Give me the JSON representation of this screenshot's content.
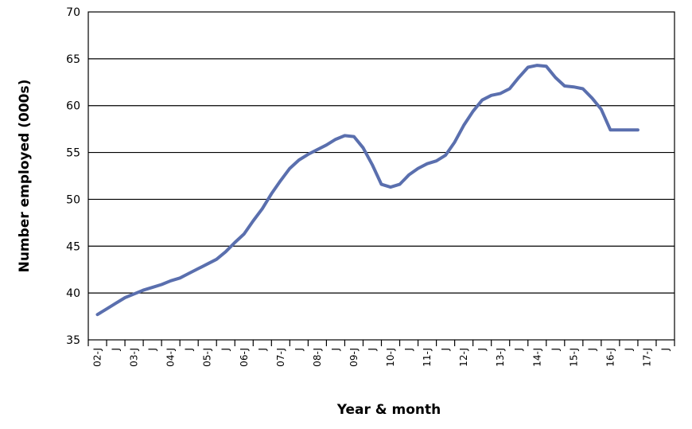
{
  "chart_data": {
    "type": "line",
    "xlabel": "Year & month",
    "ylabel": "Number employed (000s)",
    "ylim": [
      35,
      70
    ],
    "yticks": [
      35,
      40,
      45,
      50,
      55,
      60,
      65,
      70
    ],
    "grid": "horizontal",
    "legend": "none",
    "line_color": "#5a6fae",
    "x_tick_labels": [
      "02-J",
      "J",
      "03-J",
      "J",
      "04-J",
      "J",
      "05-J",
      "J",
      "06-J",
      "J",
      "07-J",
      "J",
      "08-J",
      "J",
      "09-J",
      "J",
      "10-J",
      "J",
      "11-J",
      "J",
      "12-J",
      "J",
      "13-J",
      "J",
      "14-J",
      "J",
      "15-J",
      "J",
      "16-J",
      "J",
      "17-J",
      "J"
    ],
    "series": [
      {
        "x": [
          "2002-01",
          "2002-04",
          "2002-07",
          "2002-10",
          "2003-01",
          "2003-04",
          "2003-07",
          "2003-10",
          "2004-01",
          "2004-04",
          "2004-07",
          "2004-10",
          "2005-01",
          "2005-04",
          "2005-07",
          "2005-10",
          "2006-01",
          "2006-04",
          "2006-07",
          "2006-10",
          "2007-01",
          "2007-04",
          "2007-07",
          "2007-10",
          "2008-01",
          "2008-04",
          "2008-07",
          "2008-10",
          "2009-01",
          "2009-04",
          "2009-07",
          "2009-10",
          "2010-01",
          "2010-04",
          "2010-07",
          "2010-10",
          "2011-01",
          "2011-04",
          "2011-07",
          "2011-10",
          "2012-01",
          "2012-04",
          "2012-07",
          "2012-10",
          "2013-01",
          "2013-04",
          "2013-07",
          "2013-10",
          "2014-01",
          "2014-04",
          "2014-07",
          "2014-10",
          "2015-01",
          "2015-04",
          "2015-07",
          "2015-10",
          "2016-01",
          "2016-04",
          "2016-07",
          "2016-10"
        ],
        "values": [
          37.7,
          38.3,
          38.9,
          39.5,
          39.9,
          40.3,
          40.6,
          40.9,
          41.3,
          41.6,
          42.1,
          42.6,
          43.1,
          43.6,
          44.4,
          45.4,
          46.3,
          47.7,
          49.0,
          50.6,
          52.0,
          53.3,
          54.2,
          54.8,
          55.3,
          55.8,
          56.4,
          56.8,
          56.7,
          55.5,
          53.7,
          51.6,
          51.3,
          51.6,
          52.6,
          53.3,
          53.8,
          54.1,
          54.7,
          56.1,
          57.9,
          59.4,
          60.6,
          61.1,
          61.3,
          61.8,
          63.0,
          64.1,
          64.3,
          64.2,
          63.0,
          62.1,
          62.0,
          61.8,
          60.8,
          59.6,
          57.4,
          57.4,
          57.4,
          57.4
        ]
      }
    ]
  }
}
